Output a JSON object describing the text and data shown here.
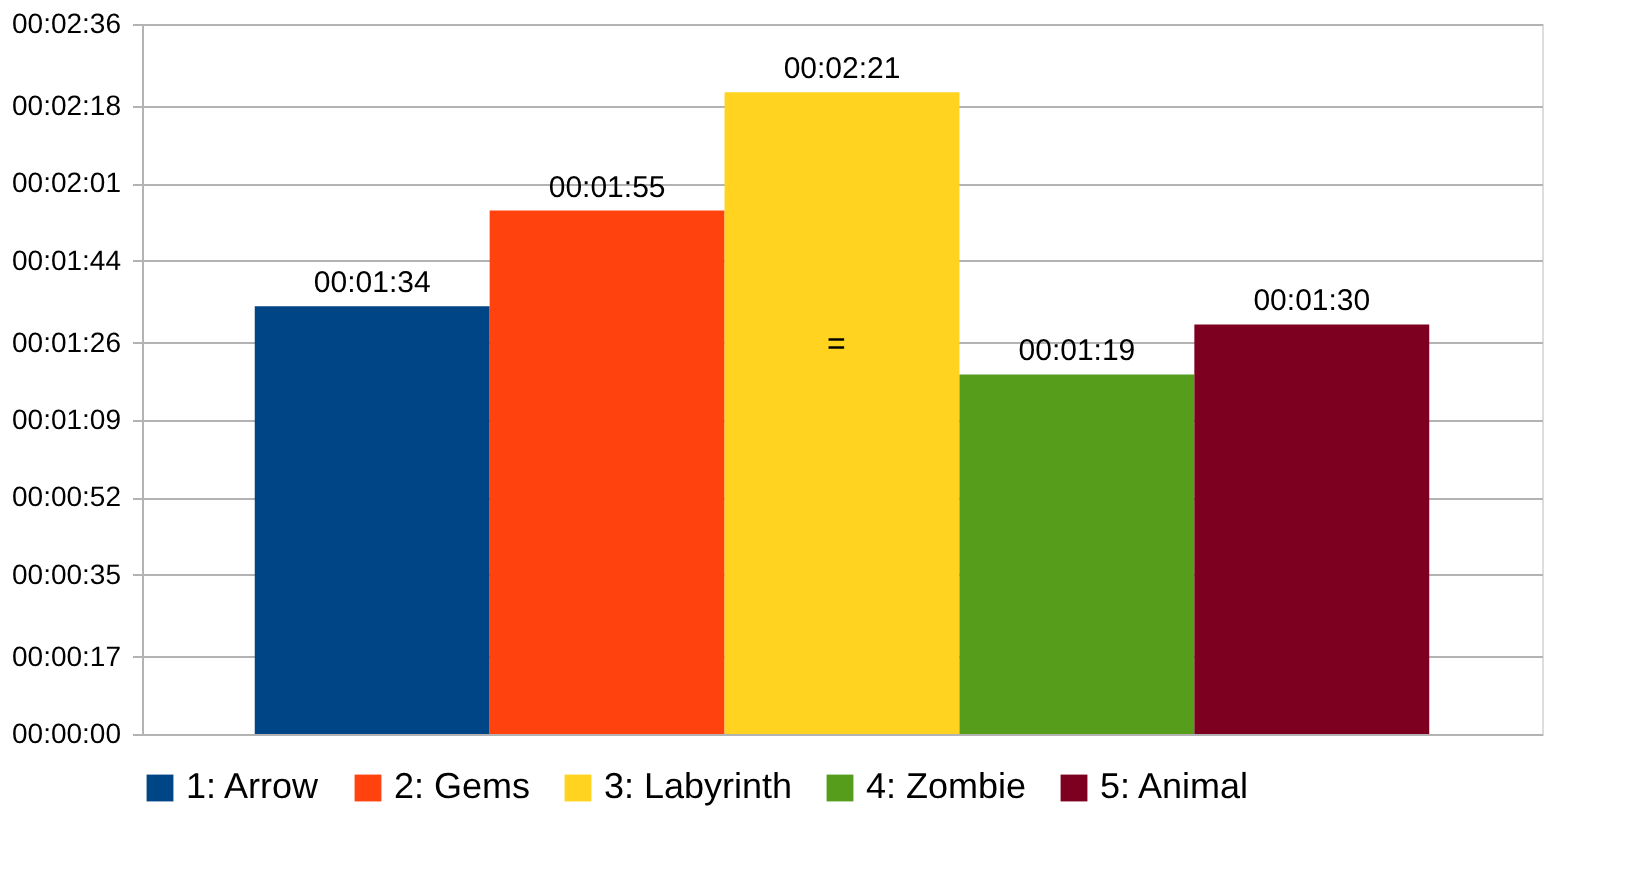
{
  "chart_data": {
    "type": "bar",
    "categories": [
      null
    ],
    "series": [
      {
        "name": "1: Arrow",
        "color": "#004586",
        "values": [
          94
        ],
        "value_labels": [
          "00:01:34"
        ]
      },
      {
        "name": "2: Gems",
        "color": "#ff420e",
        "values": [
          115
        ],
        "value_labels": [
          "00:01:55"
        ]
      },
      {
        "name": "3: Labyrinth",
        "color": "#ffd320",
        "values": [
          141
        ],
        "value_labels": [
          "00:02:21"
        ]
      },
      {
        "name": "4: Zombie",
        "color": "#579d1c",
        "values": [
          79
        ],
        "value_labels": [
          "00:01:19"
        ]
      },
      {
        "name": "5: Animal",
        "color": "#7e0021",
        "values": [
          90
        ],
        "value_labels": [
          "00:01:30"
        ]
      }
    ],
    "ylim": [
      0,
      156
    ],
    "yticks": [
      {
        "value": 0,
        "label": "00:00:00"
      },
      {
        "value": 17,
        "label": "00:00:17"
      },
      {
        "value": 35,
        "label": "00:00:35"
      },
      {
        "value": 52,
        "label": "00:00:52"
      },
      {
        "value": 69,
        "label": "00:01:09"
      },
      {
        "value": 86,
        "label": "00:01:26"
      },
      {
        "value": 104,
        "label": "00:01:44"
      },
      {
        "value": 121,
        "label": "00:02:01"
      },
      {
        "value": 138,
        "label": "00:02:18"
      },
      {
        "value": 156,
        "label": "00:02:36"
      }
    ],
    "grid": "y",
    "legend": "bottom",
    "annotations": [
      "="
    ]
  }
}
